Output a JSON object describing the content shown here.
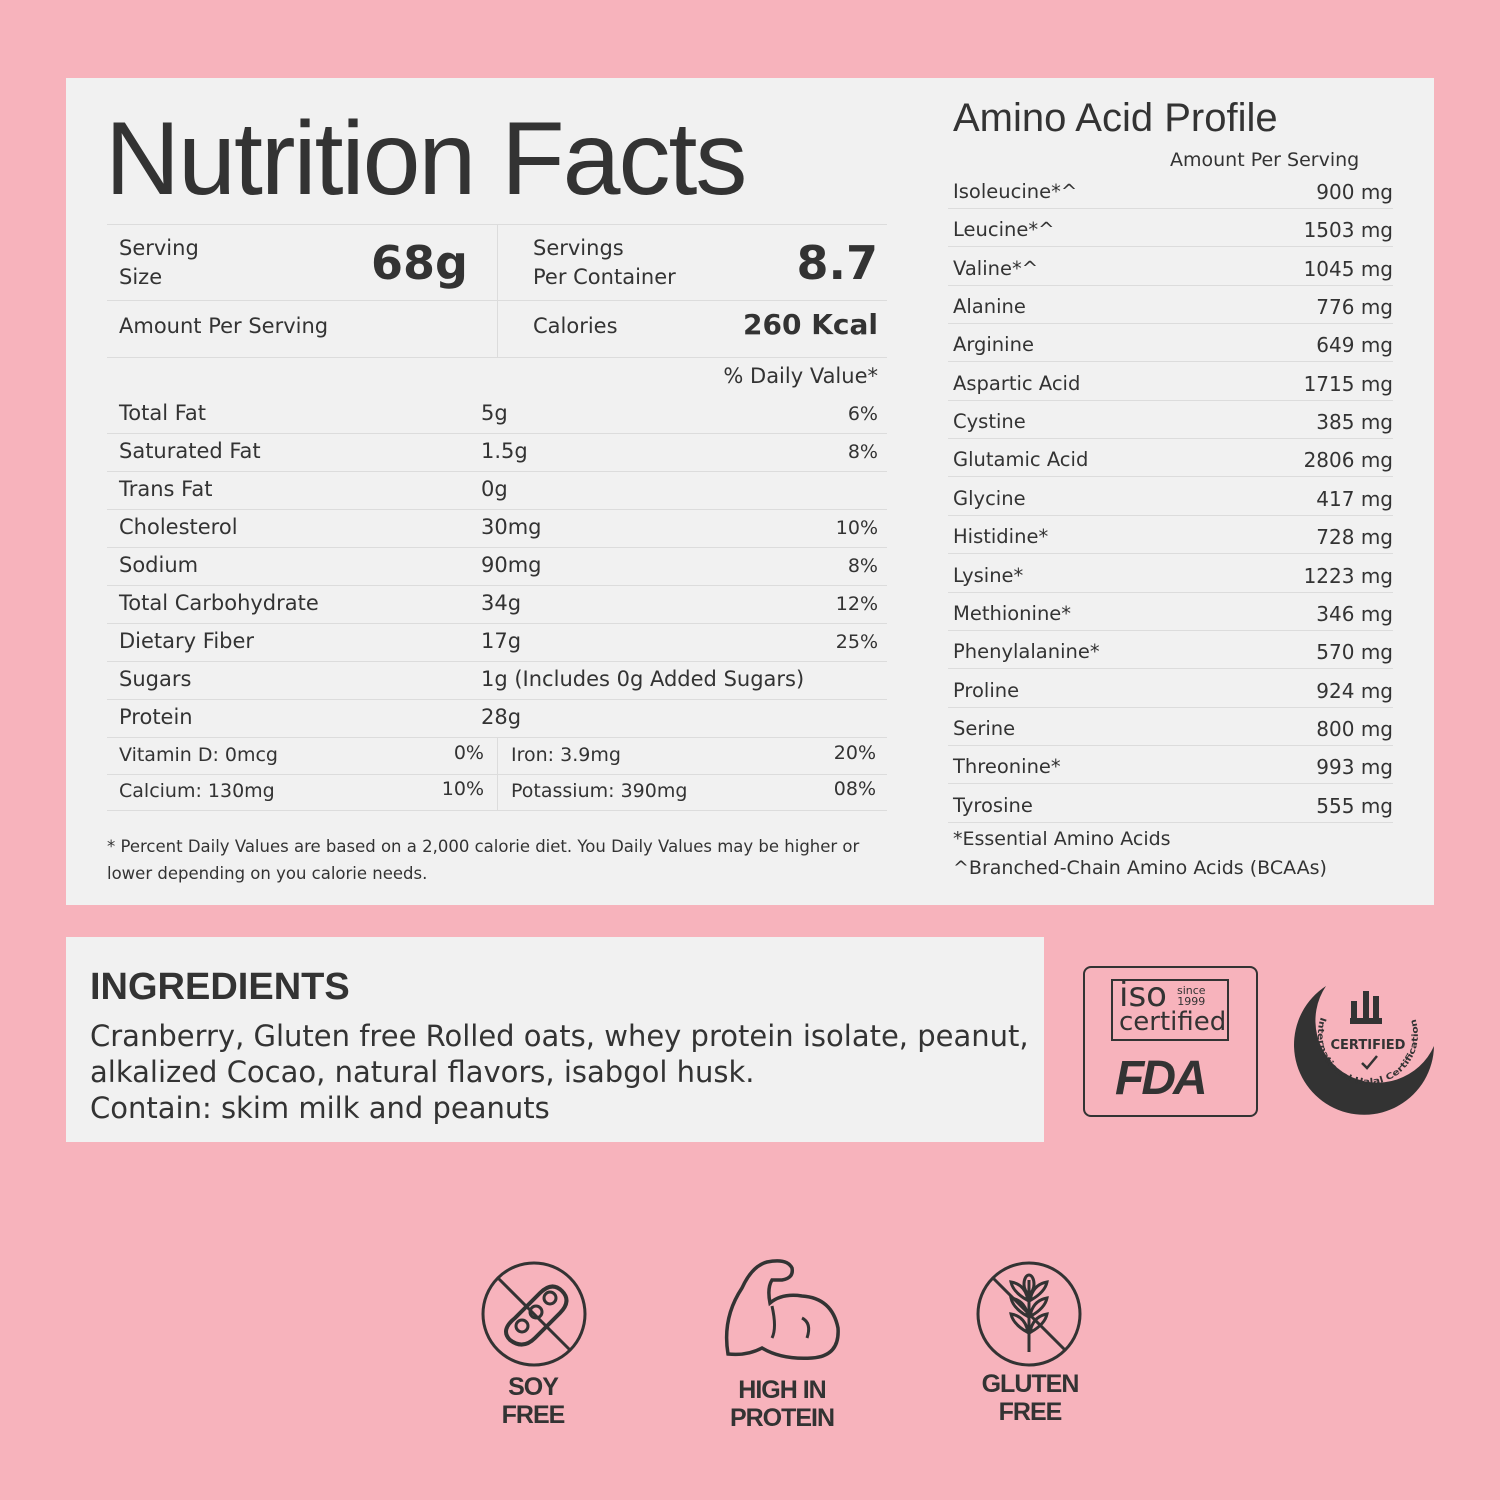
{
  "nutrition": {
    "title": "Nutrition Facts",
    "serving_size_label_1": "Serving",
    "serving_size_label_2": "Size",
    "serving_size": "68g",
    "servings_label_1": "Servings",
    "servings_label_2": "Per Container",
    "servings": "8.7",
    "amount_per_serving": "Amount Per Serving",
    "calories_label": "Calories",
    "calories": "260 Kcal",
    "daily_value_header": "% Daily Value*",
    "rows": [
      {
        "name": "Total Fat",
        "amount": "5g",
        "dv": "6%"
      },
      {
        "name": "Saturated Fat",
        "amount": "1.5g",
        "dv": "8%"
      },
      {
        "name": "Trans Fat",
        "amount": "0g",
        "dv": ""
      },
      {
        "name": "Cholesterol",
        "amount": "30mg",
        "dv": "10%"
      },
      {
        "name": "Sodium",
        "amount": "90mg",
        "dv": "8%"
      },
      {
        "name": "Total Carbohydrate",
        "amount": "34g",
        "dv": "12%"
      },
      {
        "name": "Dietary Fiber",
        "amount": "17g",
        "dv": "25%"
      },
      {
        "name": "Sugars",
        "amount": "1g (Includes 0g Added Sugars)",
        "dv": ""
      },
      {
        "name": "Protein",
        "amount": "28g",
        "dv": ""
      }
    ],
    "minerals": [
      {
        "left": "Vitamin D: 0mcg",
        "left_dv": "0%",
        "right": "Iron: 3.9mg",
        "right_dv": "20%"
      },
      {
        "left": "Calcium: 130mg",
        "left_dv": "10%",
        "right": "Potassium: 390mg",
        "right_dv": "08%"
      }
    ],
    "footnote": "* Percent Daily Values are based on a 2,000 calorie diet. You Daily Values may be higher or lower depending on you calorie needs."
  },
  "amino": {
    "title": "Amino Acid Profile",
    "subheader": "Amount Per Serving",
    "rows": [
      {
        "name": "Isoleucine*^",
        "value": "900 mg"
      },
      {
        "name": "Leucine*^",
        "value": "1503 mg"
      },
      {
        "name": "Valine*^",
        "value": "1045 mg"
      },
      {
        "name": "Alanine",
        "value": "776 mg"
      },
      {
        "name": "Arginine",
        "value": "649 mg"
      },
      {
        "name": "Aspartic Acid",
        "value": "1715 mg"
      },
      {
        "name": "Cystine",
        "value": "385 mg"
      },
      {
        "name": "Glutamic Acid",
        "value": "2806 mg"
      },
      {
        "name": "Glycine",
        "value": "417 mg"
      },
      {
        "name": "Histidine*",
        "value": "728 mg"
      },
      {
        "name": "Lysine*",
        "value": "1223 mg"
      },
      {
        "name": "Methionine*",
        "value": "346 mg"
      },
      {
        "name": "Phenylalanine*",
        "value": "570 mg"
      },
      {
        "name": "Proline",
        "value": "924 mg"
      },
      {
        "name": "Serine",
        "value": "800 mg"
      },
      {
        "name": "Threonine*",
        "value": "993 mg"
      },
      {
        "name": "Tyrosine",
        "value": "555 mg"
      }
    ],
    "note_1": "*Essential Amino Acids",
    "note_2": "^Branched-Chain Amino Acids (BCAAs)"
  },
  "ingredients": {
    "title": "INGREDIENTS",
    "line_1": "Cranberry, Gluten free Rolled oats, whey protein isolate, peanut,",
    "line_2": "alkalized Cocao, natural flavors, isabgol husk.",
    "line_3": "Contain: skim milk and peanuts"
  },
  "certifications": {
    "iso_1": "iso",
    "iso_since": "since",
    "iso_year": "1999",
    "iso_2": "certified",
    "fda": "FDA",
    "halal_certified": "CERTIFIED",
    "halal_ring": "International Halal Certification"
  },
  "badges": [
    {
      "icon": "soy-free-icon",
      "line_1": "SOY",
      "line_2": "FREE"
    },
    {
      "icon": "flexed-arm-icon",
      "line_1": "HIGH IN",
      "line_2": "PROTEIN"
    },
    {
      "icon": "gluten-free-icon",
      "line_1": "GLUTEN",
      "line_2": "FREE"
    }
  ],
  "colors": {
    "background": "#f7b3bc",
    "panel": "#f1f1f1",
    "text": "#333333"
  }
}
